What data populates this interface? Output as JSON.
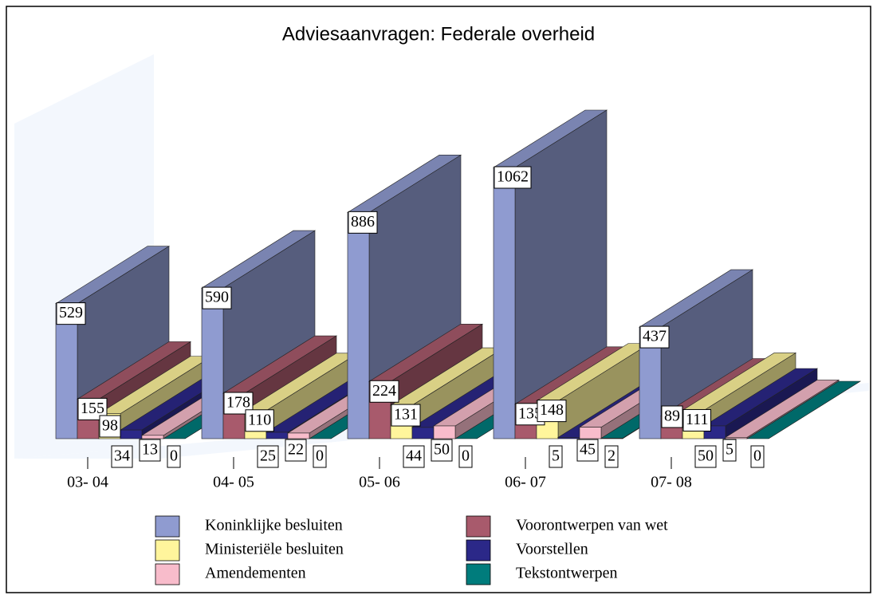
{
  "chart_data": {
    "type": "bar3d",
    "title": "Adviesaanvragen: Federale overheid",
    "categories": [
      "03- 04",
      "04- 05",
      "05- 06",
      "06- 07",
      "07- 08"
    ],
    "series": [
      {
        "name": "Koninklijke besluiten",
        "color": "#8f9bd0",
        "values": [
          529,
          590,
          886,
          1062,
          437
        ]
      },
      {
        "name": "Voorontwerpen van wet",
        "color": "#a85a6c",
        "values": [
          155,
          178,
          224,
          135,
          89
        ]
      },
      {
        "name": "Ministeriële besluiten",
        "color": "#fff59c",
        "values": [
          98,
          110,
          131,
          148,
          111
        ]
      },
      {
        "name": "Voorstellen",
        "color": "#2b2888",
        "values": [
          34,
          25,
          44,
          5,
          50
        ]
      },
      {
        "name": "Amendementen",
        "color": "#f8bccb",
        "values": [
          13,
          22,
          50,
          45,
          5
        ]
      },
      {
        "name": "Tekstontwerpen",
        "color": "#007c7c",
        "values": [
          0,
          0,
          0,
          2,
          0
        ]
      }
    ]
  }
}
